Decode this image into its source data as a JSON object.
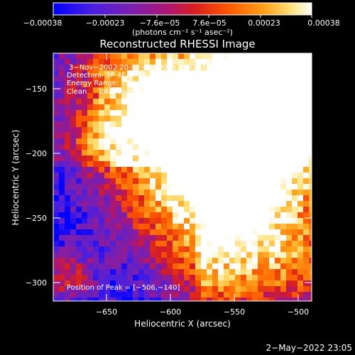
{
  "colorbar": {
    "tick_labels": [
      "−0.00038",
      "−0.00023",
      "−7.6e−05",
      "7.6e−05",
      "0.00023",
      "0.00038"
    ],
    "units_label": "(photons cm⁻² s⁻¹ asec⁻²)",
    "colormap": [
      "#0000ff",
      "#6a1fd0",
      "#b0166e",
      "#e23b00",
      "#ff8c00",
      "#ffd24a",
      "#ffffff"
    ]
  },
  "plot": {
    "title": "Reconstructed RHESSI Image",
    "xlabel": "Heliocentric X (arcsec)",
    "ylabel": "Heliocentric Y (arcsec)",
    "x_ticks": [
      "−650",
      "−600",
      "−550",
      "−500"
    ],
    "y_ticks": [
      "−150",
      "−200",
      "−250",
      "−300"
    ],
    "info_lines": [
      "3−Nov−2002 20:03:44.000 to 20:09:44.000",
      "Detectors: 3F 4F 5F 6F 7F 8F, Att 0",
      "Energy Range: 25.0 − 50.0 keV",
      "Clean     Total counts: 1.28E+04"
    ],
    "peak_label": "Position of Peak = [−506,−140]"
  },
  "footer": {
    "timestamp": "2−May−2022 23:05"
  }
}
